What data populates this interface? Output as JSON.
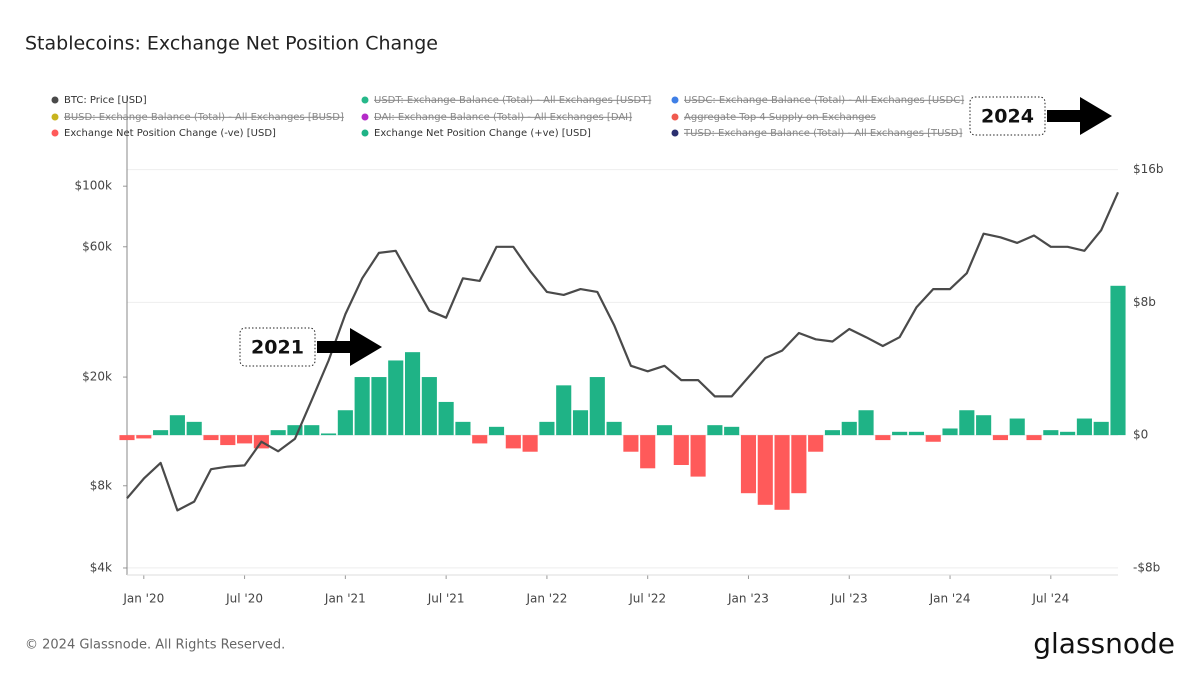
{
  "chart_data": {
    "type": "bar-line",
    "title": "Stablecoins: Exchange Net Position Change",
    "x": [
      "2019-12",
      "2020-01",
      "2020-02",
      "2020-03",
      "2020-04",
      "2020-05",
      "2020-06",
      "2020-07",
      "2020-08",
      "2020-09",
      "2020-10",
      "2020-11",
      "2020-12",
      "2021-01",
      "2021-02",
      "2021-03",
      "2021-04",
      "2021-05",
      "2021-06",
      "2021-07",
      "2021-08",
      "2021-09",
      "2021-10",
      "2021-11",
      "2021-12",
      "2022-01",
      "2022-02",
      "2022-03",
      "2022-04",
      "2022-05",
      "2022-06",
      "2022-07",
      "2022-08",
      "2022-09",
      "2022-10",
      "2022-11",
      "2022-12",
      "2023-01",
      "2023-02",
      "2023-03",
      "2023-04",
      "2023-05",
      "2023-06",
      "2023-07",
      "2023-08",
      "2023-09",
      "2023-10",
      "2023-11",
      "2023-12",
      "2024-01",
      "2024-02",
      "2024-03",
      "2024-04",
      "2024-05",
      "2024-06",
      "2024-07",
      "2024-08",
      "2024-09",
      "2024-10",
      "2024-11"
    ],
    "xlim": [
      "2019-12",
      "2024-11"
    ],
    "xticks": [
      {
        "value": "2020-01",
        "label": "Jan '20"
      },
      {
        "value": "2020-07",
        "label": "Jul '20"
      },
      {
        "value": "2021-01",
        "label": "Jan '21"
      },
      {
        "value": "2021-07",
        "label": "Jul '21"
      },
      {
        "value": "2022-01",
        "label": "Jan '22"
      },
      {
        "value": "2022-07",
        "label": "Jul '22"
      },
      {
        "value": "2023-01",
        "label": "Jan '23"
      },
      {
        "value": "2023-07",
        "label": "Jul '23"
      },
      {
        "value": "2024-01",
        "label": "Jan '24"
      },
      {
        "value": "2024-07",
        "label": "Jul '24"
      }
    ],
    "ylog": true,
    "ylim": [
      3770,
      225000
    ],
    "yticks": [
      {
        "value": 4000,
        "label": "$4k"
      },
      {
        "value": 8000,
        "label": "$8k"
      },
      {
        "value": 20000,
        "label": "$20k"
      },
      {
        "value": 60000,
        "label": "$60k"
      },
      {
        "value": 100000,
        "label": "$100k"
      }
    ],
    "y2lim": [
      -8.43,
      20.8
    ],
    "y2ticks": [
      {
        "value": -8,
        "label": "-$8b"
      },
      {
        "value": 0,
        "label": "$0"
      },
      {
        "value": 8,
        "label": "$8b"
      },
      {
        "value": 16,
        "label": "$16b"
      }
    ],
    "series": [
      {
        "name": "BTC: Price [USD]",
        "color": "#4a4a4a",
        "kind": "line",
        "axis": "y",
        "values": [
          7200,
          8500,
          9700,
          6500,
          7000,
          9200,
          9400,
          9500,
          11600,
          10700,
          11900,
          16500,
          23000,
          34000,
          46000,
          57000,
          58000,
          45000,
          35000,
          33000,
          46000,
          45000,
          60000,
          60000,
          49000,
          41000,
          40000,
          42000,
          41000,
          31000,
          22000,
          21000,
          22000,
          19500,
          19500,
          17000,
          17000,
          20000,
          23500,
          25000,
          29000,
          27500,
          27000,
          30000,
          28000,
          26000,
          28000,
          36000,
          42000,
          42000,
          48000,
          67000,
          65000,
          62000,
          66000,
          60000,
          60000,
          58000,
          69000,
          95000
        ]
      },
      {
        "name": "USDT: Exchange Balance (Total) - All Exchanges [USDT]",
        "color": "#26b88a",
        "hidden": true
      },
      {
        "name": "USDC: Exchange Balance (Total) - All Exchanges [USDC]",
        "color": "#3f7fe6",
        "hidden": true
      },
      {
        "name": "BUSD: Exchange Balance (Total) - All Exchanges [BUSD]",
        "color": "#c8b41e",
        "hidden": true
      },
      {
        "name": "DAI: Exchange Balance (Total) - All Exchanges [DAI]",
        "color": "#b42bc8",
        "hidden": true
      },
      {
        "name": "Aggregate Top 4 Supply on Exchanges",
        "color": "#f05a4f",
        "hidden": true
      },
      {
        "name": "Exchange Net Position Change (-ve) [USD]",
        "color": "#ff5a5a",
        "kind": "bar",
        "axis": "y2",
        "values": [
          -0.3,
          -0.2,
          null,
          null,
          null,
          -0.3,
          -0.6,
          -0.5,
          -0.8,
          null,
          null,
          null,
          null,
          null,
          null,
          null,
          null,
          null,
          null,
          null,
          null,
          -0.5,
          null,
          -0.8,
          -1.0,
          null,
          null,
          null,
          null,
          null,
          -1.0,
          -2.0,
          null,
          -1.8,
          -2.5,
          null,
          null,
          -3.5,
          -4.2,
          -4.5,
          -3.5,
          -1.0,
          null,
          null,
          null,
          -0.3,
          null,
          null,
          -0.4,
          null,
          null,
          null,
          -0.3,
          null,
          -0.3,
          null,
          null,
          null,
          null,
          null
        ]
      },
      {
        "name": "Exchange Net Position Change (+ve) [USD]",
        "color": "#1fb386",
        "kind": "bar",
        "axis": "y2",
        "values": [
          null,
          null,
          0.3,
          1.2,
          0.8,
          null,
          null,
          null,
          null,
          0.3,
          0.6,
          0.6,
          0.1,
          1.5,
          3.5,
          3.5,
          4.5,
          5.0,
          3.5,
          2.0,
          0.8,
          null,
          0.5,
          null,
          null,
          0.8,
          3.0,
          1.5,
          3.5,
          0.8,
          null,
          null,
          0.6,
          null,
          null,
          0.6,
          0.5,
          null,
          null,
          null,
          null,
          null,
          0.3,
          0.8,
          1.5,
          null,
          0.2,
          0.2,
          null,
          0.4,
          1.5,
          1.2,
          null,
          1.0,
          null,
          0.3,
          0.2,
          1.0,
          0.8,
          9.0
        ]
      },
      {
        "name": "TUSD: Exchange Balance (Total) - All Exchanges [TUSD]",
        "color": "#2b3070",
        "hidden": true
      }
    ],
    "annotations": [
      "2021",
      "2024"
    ]
  },
  "footer": "© 2024 Glassnode. All Rights Reserved.",
  "brand": "glassnode"
}
